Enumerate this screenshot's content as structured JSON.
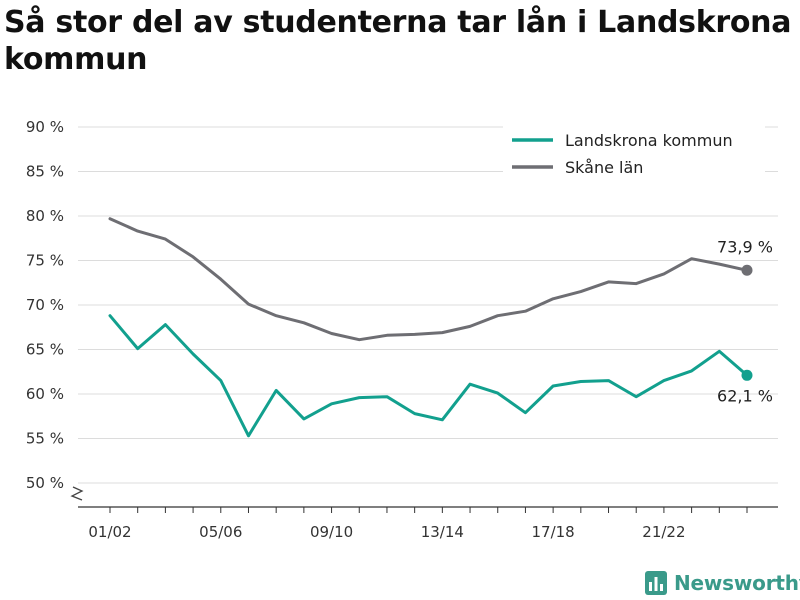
{
  "title": "Så stor del av studenterna tar lån i Landskrona kommun",
  "brand": {
    "name": "Newsworthy",
    "icon": "newsworthy-logo-icon"
  },
  "chart_data": {
    "type": "line",
    "title": "Så stor del av studenterna tar lån i Landskrona kommun",
    "xlabel": "",
    "ylabel": "",
    "ylim": [
      50,
      90
    ],
    "y_ticks": [
      50,
      55,
      60,
      65,
      70,
      75,
      80,
      85,
      90
    ],
    "y_tick_labels": [
      "50 %",
      "55 %",
      "60 %",
      "65 %",
      "70 %",
      "75 %",
      "80 %",
      "85 %",
      "90 %"
    ],
    "y_axis_broken": true,
    "grid": true,
    "legend_position": "top-right",
    "categories": [
      "01/02",
      "02/03",
      "03/04",
      "04/05",
      "05/06",
      "06/07",
      "07/08",
      "08/09",
      "09/10",
      "10/11",
      "11/12",
      "12/13",
      "13/14",
      "14/15",
      "15/16",
      "16/17",
      "17/18",
      "18/19",
      "19/20",
      "20/21",
      "21/22",
      "22/23",
      "23/24",
      "24/25"
    ],
    "x_tick_labels": [
      "01/02",
      "05/06",
      "09/10",
      "13/14",
      "17/18",
      "21/22"
    ],
    "series": [
      {
        "name": "Landskrona kommun",
        "color": "#12a08e",
        "values": [
          68.8,
          65.1,
          67.8,
          64.5,
          61.5,
          55.3,
          60.4,
          57.2,
          58.9,
          59.6,
          59.7,
          57.8,
          57.1,
          61.1,
          60.1,
          57.9,
          60.9,
          61.4,
          61.5,
          59.7,
          61.5,
          62.6,
          64.8,
          62.1
        ],
        "end_label": "62,1 %"
      },
      {
        "name": "Skåne län",
        "color": "#6e6e73",
        "values": [
          79.7,
          78.3,
          77.4,
          75.4,
          72.9,
          70.1,
          68.8,
          68.0,
          66.8,
          66.1,
          66.6,
          66.7,
          66.9,
          67.6,
          68.8,
          69.3,
          70.7,
          71.5,
          72.6,
          72.4,
          73.5,
          75.2,
          74.6,
          73.9
        ],
        "end_label": "73,9 %"
      }
    ]
  }
}
